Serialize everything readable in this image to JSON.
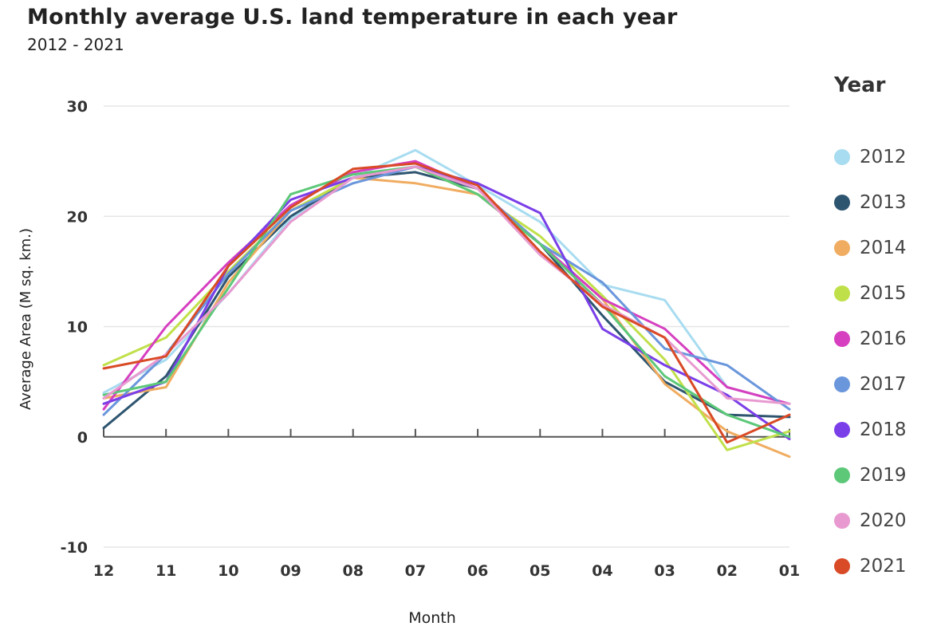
{
  "chart_data": {
    "type": "line",
    "title": "Monthly average U.S. land temperature in each year",
    "subtitle": "2012 - 2021",
    "xlabel": "Month",
    "ylabel": "Average Area (M sq. km.)",
    "legend_title": "Year",
    "legend_position": "right",
    "grid": true,
    "ylim": [
      -10,
      30
    ],
    "yticks": [
      -10,
      0,
      10,
      20,
      30
    ],
    "categories": [
      "12",
      "11",
      "10",
      "09",
      "08",
      "07",
      "06",
      "05",
      "04",
      "03",
      "02",
      "01"
    ],
    "series": [
      {
        "name": "2012",
        "color": "#a8dcf0",
        "values": [
          4.0,
          7.0,
          13.0,
          19.8,
          23.5,
          26.0,
          22.8,
          19.5,
          13.8,
          12.4,
          4.5,
          3.0
        ]
      },
      {
        "name": "2013",
        "color": "#2e5570",
        "values": [
          0.8,
          5.5,
          14.5,
          20.0,
          23.5,
          24.0,
          22.5,
          17.5,
          11.0,
          5.0,
          2.0,
          1.8
        ]
      },
      {
        "name": "2014",
        "color": "#f0ac60",
        "values": [
          3.5,
          4.5,
          14.0,
          20.5,
          23.5,
          23.0,
          22.0,
          17.5,
          12.5,
          4.8,
          0.5,
          -1.8
        ]
      },
      {
        "name": "2015",
        "color": "#c0e04a",
        "values": [
          6.5,
          9.0,
          15.0,
          20.5,
          23.5,
          24.5,
          22.0,
          18.2,
          12.8,
          7.0,
          -1.2,
          0.5
        ]
      },
      {
        "name": "2016",
        "color": "#d63fc0",
        "values": [
          2.5,
          10.0,
          15.8,
          21.0,
          24.0,
          25.0,
          22.5,
          17.5,
          12.5,
          9.8,
          4.5,
          3.0
        ]
      },
      {
        "name": "2017",
        "color": "#6a96dc",
        "values": [
          2.0,
          7.5,
          14.8,
          20.5,
          23.0,
          24.5,
          22.5,
          17.5,
          14.0,
          8.0,
          6.5,
          2.5
        ]
      },
      {
        "name": "2018",
        "color": "#7a3fe8",
        "values": [
          3.0,
          5.0,
          15.5,
          21.5,
          23.5,
          24.5,
          23.0,
          20.3,
          9.8,
          6.5,
          3.8,
          -0.2
        ]
      },
      {
        "name": "2019",
        "color": "#5cc878",
        "values": [
          3.8,
          5.0,
          13.5,
          22.0,
          23.8,
          24.5,
          22.0,
          17.5,
          12.0,
          5.5,
          2.0,
          0.0
        ]
      },
      {
        "name": "2020",
        "color": "#e89ad0",
        "values": [
          3.5,
          7.5,
          13.0,
          19.5,
          23.5,
          24.5,
          22.5,
          16.5,
          12.0,
          9.0,
          3.5,
          3.0
        ]
      },
      {
        "name": "2021",
        "color": "#d94a26",
        "values": [
          6.2,
          7.3,
          15.5,
          20.8,
          24.3,
          24.8,
          22.8,
          16.8,
          11.8,
          9.0,
          -0.5,
          2.0
        ]
      }
    ]
  }
}
